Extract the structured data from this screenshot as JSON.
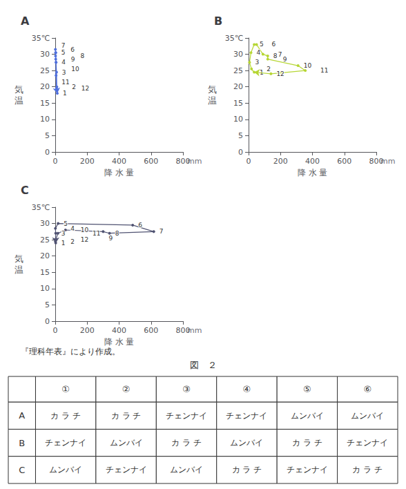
{
  "chart_data": [
    {
      "type": "line",
      "title": "A",
      "x": [
        13,
        10,
        8,
        5,
        3,
        1,
        3,
        2,
        3,
        5,
        5,
        8
      ],
      "values": [
        18.0,
        20.0,
        24.5,
        27.5,
        30.5,
        31.5,
        30.5,
        29.5,
        28.5,
        27.5,
        23.5,
        19.5
      ],
      "point_labels": [
        1,
        2,
        3,
        4,
        5,
        6,
        7,
        8,
        9,
        10,
        11,
        12
      ],
      "xlabel": "降 水 量",
      "ylabel": "気温",
      "annotations": [
        "mm"
      ],
      "xlim": [
        0,
        800
      ],
      "ylim": [
        0,
        35
      ],
      "xticks": [
        0,
        200,
        400,
        600,
        800
      ],
      "yticks": [
        0,
        5,
        10,
        15,
        20,
        25,
        30,
        {
          "value": 35,
          "label": "35℃"
        }
      ],
      "grid": false
    },
    {
      "type": "line",
      "title": "B",
      "x": [
        35,
        18,
        6,
        15,
        35,
        50,
        90,
        120,
        120,
        310,
        355,
        140
      ],
      "values": [
        24.5,
        25.5,
        27.5,
        30.5,
        33.0,
        33.0,
        30.0,
        29.5,
        28.5,
        26.5,
        25.0,
        24.0
      ],
      "point_labels": [
        1,
        2,
        3,
        4,
        5,
        6,
        7,
        8,
        9,
        10,
        11,
        12
      ],
      "xlabel": "降 水 量",
      "ylabel": "気温",
      "annotations": [
        "mm"
      ],
      "xlim": [
        0,
        800
      ],
      "ylim": [
        0,
        35
      ],
      "xticks": [
        0,
        200,
        400,
        600,
        800
      ],
      "yticks": [
        0,
        5,
        10,
        15,
        20,
        25,
        30,
        {
          "value": 35,
          "label": "35℃"
        }
      ],
      "grid": false
    },
    {
      "type": "line",
      "title": "C",
      "x": [
        3,
        1,
        3,
        1,
        18,
        485,
        617,
        340,
        300,
        64,
        17,
        3
      ],
      "values": [
        24.0,
        24.5,
        27.0,
        28.5,
        30.0,
        29.5,
        27.5,
        27.0,
        27.5,
        28.0,
        27.0,
        25.0
      ],
      "point_labels": [
        1,
        2,
        3,
        4,
        5,
        6,
        7,
        8,
        9,
        10,
        11,
        12
      ],
      "xlabel": "降 水 量",
      "ylabel": "気温",
      "annotations": [
        "mm"
      ],
      "xlim": [
        0,
        800
      ],
      "ylim": [
        0,
        35
      ],
      "xticks": [
        0,
        200,
        400,
        600,
        800
      ],
      "yticks": [
        0,
        5,
        10,
        15,
        20,
        25,
        30,
        {
          "value": 35,
          "label": "35℃"
        }
      ],
      "grid": false
    },
    {
      "type": "table",
      "title": "図　２",
      "annotations": [
        "『理科年表』により作成。"
      ],
      "categories": [
        "①",
        "②",
        "③",
        "④",
        "⑤",
        "⑥"
      ],
      "series": [
        {
          "name": "A",
          "values": [
            "カ ラ チ",
            "カ ラ チ",
            "チェンナイ",
            "チェンナイ",
            "ムンバイ",
            "ムンバイ"
          ]
        },
        {
          "name": "B",
          "values": [
            "チェンナイ",
            "ムンバイ",
            "カ ラ チ",
            "ムンバイ",
            "カ ラ チ",
            "チェンナイ"
          ]
        },
        {
          "name": "C",
          "values": [
            "ムンバイ",
            "チェンナイ",
            "ムンバイ",
            "カ ラ チ",
            "チェンナイ",
            "カ ラ チ"
          ]
        }
      ]
    }
  ]
}
